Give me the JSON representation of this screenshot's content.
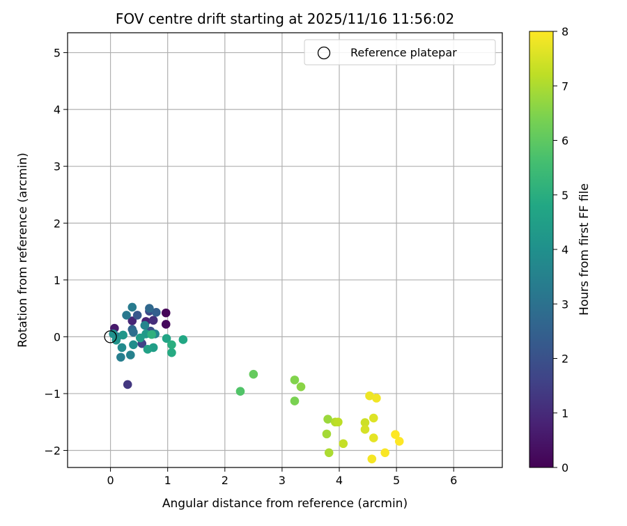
{
  "chart_data": {
    "type": "scatter",
    "title": "FOV centre drift starting at 2025/11/16 11:56:02",
    "xlabel": "Angular distance from reference (arcmin)",
    "ylabel": "Rotation from reference (arcmin)",
    "xlim": [
      -0.75,
      6.85
    ],
    "ylim": [
      -2.3,
      5.35
    ],
    "xticks": [
      0,
      1,
      2,
      3,
      4,
      5,
      6
    ],
    "yticks": [
      -2,
      -1,
      0,
      1,
      2,
      3,
      4,
      5
    ],
    "xtick_labels": [
      "0",
      "1",
      "2",
      "3",
      "4",
      "5",
      "6"
    ],
    "ytick_labels": [
      "−2",
      "−1",
      "0",
      "1",
      "2",
      "3",
      "4",
      "5"
    ],
    "grid": true,
    "legend": {
      "position": "top-right",
      "label": "Reference platepar"
    },
    "reference_point": {
      "x": 0,
      "y": 0
    },
    "colorbar": {
      "label": "Hours from first FF file",
      "range": [
        0,
        8
      ],
      "ticks": [
        0,
        1,
        2,
        3,
        4,
        5,
        6,
        7,
        8
      ],
      "tick_labels": [
        "0",
        "1",
        "2",
        "3",
        "4",
        "5",
        "6",
        "7",
        "8"
      ],
      "colormap": "viridis"
    },
    "points": [
      {
        "x": 0.97,
        "y": 0.42,
        "hours": 0.1
      },
      {
        "x": 0.97,
        "y": 0.22,
        "hours": 0.2
      },
      {
        "x": 0.07,
        "y": 0.15,
        "hours": 0.6
      },
      {
        "x": 0.62,
        "y": 0.27,
        "hours": 0.8
      },
      {
        "x": 0.38,
        "y": 0.28,
        "hours": 0.9
      },
      {
        "x": 0.75,
        "y": 0.29,
        "hours": 1.1
      },
      {
        "x": 0.3,
        "y": -0.84,
        "hours": 1.3
      },
      {
        "x": 0.55,
        "y": -0.12,
        "hours": 1.6
      },
      {
        "x": 0.68,
        "y": 0.45,
        "hours": 1.8
      },
      {
        "x": 0.7,
        "y": 0.1,
        "hours": 2.0
      },
      {
        "x": 0.47,
        "y": 0.38,
        "hours": 2.2
      },
      {
        "x": 0.8,
        "y": 0.43,
        "hours": 2.4
      },
      {
        "x": 0.38,
        "y": 0.13,
        "hours": 2.6
      },
      {
        "x": 0.68,
        "y": 0.5,
        "hours": 2.7
      },
      {
        "x": 0.4,
        "y": 0.08,
        "hours": 2.9
      },
      {
        "x": 0.12,
        "y": 0.0,
        "hours": 3.1
      },
      {
        "x": 0.28,
        "y": 0.38,
        "hours": 3.2
      },
      {
        "x": 0.38,
        "y": 0.52,
        "hours": 3.3
      },
      {
        "x": 0.18,
        "y": -0.36,
        "hours": 3.4
      },
      {
        "x": 0.35,
        "y": -0.32,
        "hours": 3.5
      },
      {
        "x": 0.6,
        "y": 0.2,
        "hours": 3.6
      },
      {
        "x": 0.78,
        "y": 0.05,
        "hours": 3.7
      },
      {
        "x": 0.2,
        "y": -0.19,
        "hours": 3.8
      },
      {
        "x": 0.4,
        "y": -0.14,
        "hours": 3.9
      },
      {
        "x": 0.05,
        "y": 0.05,
        "hours": 4.0
      },
      {
        "x": 0.1,
        "y": -0.06,
        "hours": 4.1
      },
      {
        "x": 0.22,
        "y": 0.03,
        "hours": 4.2
      },
      {
        "x": 0.62,
        "y": 0.05,
        "hours": 4.3
      },
      {
        "x": 0.52,
        "y": -0.02,
        "hours": 4.4
      },
      {
        "x": 0.75,
        "y": -0.19,
        "hours": 4.5
      },
      {
        "x": 0.65,
        "y": -0.22,
        "hours": 4.6
      },
      {
        "x": 0.98,
        "y": -0.03,
        "hours": 4.7
      },
      {
        "x": 1.27,
        "y": -0.05,
        "hours": 4.8
      },
      {
        "x": 1.07,
        "y": -0.28,
        "hours": 4.9
      },
      {
        "x": 1.07,
        "y": -0.14,
        "hours": 5.0
      },
      {
        "x": 0.72,
        "y": 0.04,
        "hours": 5.1
      },
      {
        "x": 2.27,
        "y": -0.96,
        "hours": 5.8
      },
      {
        "x": 2.5,
        "y": -0.66,
        "hours": 6.1
      },
      {
        "x": 3.22,
        "y": -1.13,
        "hours": 6.4
      },
      {
        "x": 3.22,
        "y": -0.76,
        "hours": 6.5
      },
      {
        "x": 3.33,
        "y": -0.88,
        "hours": 6.6
      },
      {
        "x": 3.8,
        "y": -1.45,
        "hours": 6.8
      },
      {
        "x": 3.78,
        "y": -1.71,
        "hours": 6.9
      },
      {
        "x": 3.82,
        "y": -2.04,
        "hours": 7.0
      },
      {
        "x": 3.93,
        "y": -1.5,
        "hours": 7.1
      },
      {
        "x": 3.98,
        "y": -1.5,
        "hours": 7.2
      },
      {
        "x": 4.07,
        "y": -1.88,
        "hours": 7.3
      },
      {
        "x": 4.45,
        "y": -1.51,
        "hours": 7.4
      },
      {
        "x": 4.45,
        "y": -1.63,
        "hours": 7.5
      },
      {
        "x": 4.6,
        "y": -1.43,
        "hours": 7.6
      },
      {
        "x": 4.6,
        "y": -1.78,
        "hours": 7.7
      },
      {
        "x": 4.53,
        "y": -1.04,
        "hours": 7.8
      },
      {
        "x": 4.65,
        "y": -1.08,
        "hours": 7.85
      },
      {
        "x": 4.57,
        "y": -2.15,
        "hours": 7.9
      },
      {
        "x": 4.8,
        "y": -2.04,
        "hours": 7.95
      },
      {
        "x": 4.98,
        "y": -1.72,
        "hours": 8.0
      },
      {
        "x": 5.05,
        "y": -1.84,
        "hours": 8.0
      }
    ]
  }
}
